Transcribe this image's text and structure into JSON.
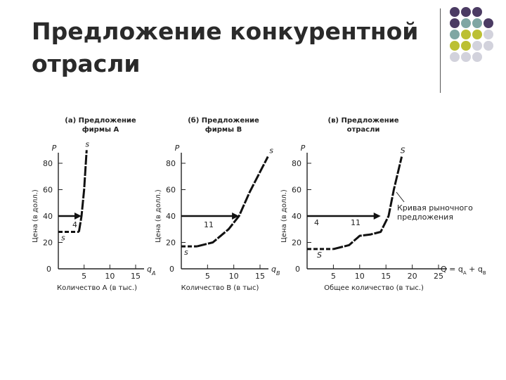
{
  "slide": {
    "title_line1": "Предложение конкурентной",
    "title_line2": "отрасли"
  },
  "decoration": {
    "dot_colors": [
      "#4b3b63",
      "#7fa6a3",
      "#bcc033",
      "#d2d2dc"
    ]
  },
  "chart_data": [
    {
      "type": "line",
      "title_line1": "(а) Предложение",
      "title_line2": "фирмы А",
      "ylabel": "Цена (в долл.)",
      "xlabel": "Количество А (в тыс.)",
      "y_axis_letter": "P",
      "x_axis_letter": "q",
      "x_axis_sub": "A",
      "xlim": [
        0,
        15
      ],
      "ylim": [
        0,
        80
      ],
      "xticks": [
        "5",
        "10",
        "15"
      ],
      "yticks": [
        "20",
        "40",
        "60",
        "80"
      ],
      "origin": "0",
      "curve_label_top": "s",
      "curve_label_bottom": "s",
      "price_line": 40,
      "qty_label": "4",
      "flat_segment": {
        "y": 28,
        "x": [
          0,
          4
        ]
      },
      "curve": [
        [
          4,
          28
        ],
        [
          4.5,
          40
        ],
        [
          5,
          60
        ],
        [
          5.5,
          90
        ]
      ]
    },
    {
      "type": "line",
      "title_line1": "(б) Предложение",
      "title_line2": "фирмы В",
      "ylabel": "Цена (в долл.)",
      "xlabel": "Количество В (в тыс)",
      "y_axis_letter": "P",
      "x_axis_letter": "q",
      "x_axis_sub": "B",
      "xlim": [
        0,
        15
      ],
      "ylim": [
        0,
        80
      ],
      "xticks": [
        "5",
        "10",
        "15"
      ],
      "yticks": [
        "20",
        "40",
        "60",
        "80"
      ],
      "origin": "0",
      "curve_label_top": "s",
      "curve_label_bottom": "s",
      "price_line": 40,
      "qty_label": "11",
      "flat_segment": {
        "y": 17,
        "x": [
          0,
          3
        ]
      },
      "curve": [
        [
          3,
          17
        ],
        [
          6,
          20
        ],
        [
          9,
          30
        ],
        [
          11,
          40
        ],
        [
          13,
          58
        ],
        [
          16.5,
          85
        ]
      ]
    },
    {
      "type": "line",
      "title_line1": "(в) Предложение",
      "title_line2": "отрасли",
      "ylabel": "Цена (в долл.)",
      "xlabel": "Общее количество (в тыс.)",
      "y_axis_letter": "P",
      "x_axis_label": "Q = q",
      "x_axis_sub_1": "A",
      "x_axis_plus": " + q",
      "x_axis_sub_2": "B",
      "xlim": [
        0,
        25
      ],
      "ylim": [
        0,
        80
      ],
      "xticks": [
        "5",
        "10",
        "15",
        "20",
        "25"
      ],
      "yticks": [
        "20",
        "40",
        "60",
        "80"
      ],
      "origin": "0",
      "curve_label_top": "S",
      "curve_label_bottom": "S",
      "price_line": 40,
      "qty_label_1": "4",
      "qty_label_2": "11",
      "annotation_line1": "Кривая рыночного",
      "annotation_line2": "предложения",
      "flat_segment": {
        "y": 15,
        "x": [
          0,
          5
        ]
      },
      "curve": [
        [
          5,
          15
        ],
        [
          8,
          18
        ],
        [
          10,
          25
        ],
        [
          12,
          26
        ],
        [
          14,
          28
        ],
        [
          15.5,
          40
        ],
        [
          16.5,
          60
        ],
        [
          18,
          85
        ]
      ]
    }
  ]
}
